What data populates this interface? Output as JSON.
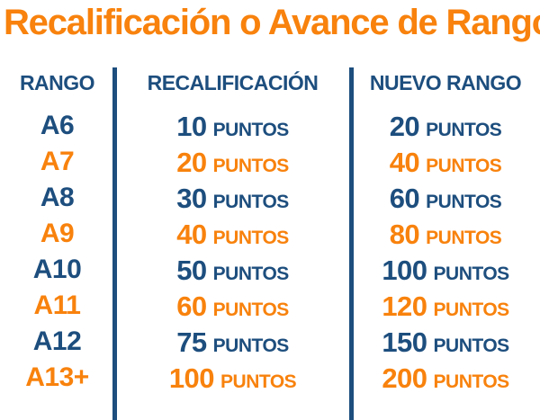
{
  "title": "Recalificación o Avance de Rango",
  "colors": {
    "orange": "#F8820D",
    "navy": "#1D4E7E",
    "background": "#FFFFFF"
  },
  "table": {
    "headers": {
      "rango": "RANGO",
      "recalificacion": "RECALIFICACIÓN",
      "nuevo_rango": "NUEVO RANGO"
    },
    "points_suffix": "PUNTOS",
    "rows": [
      {
        "rank": "A6",
        "recalificacion": "10",
        "nuevo_rango": "20",
        "color": "navy"
      },
      {
        "rank": "A7",
        "recalificacion": "20",
        "nuevo_rango": "40",
        "color": "orange"
      },
      {
        "rank": "A8",
        "recalificacion": "30",
        "nuevo_rango": "60",
        "color": "navy"
      },
      {
        "rank": "A9",
        "recalificacion": "40",
        "nuevo_rango": "80",
        "color": "orange"
      },
      {
        "rank": "A10",
        "recalificacion": "50",
        "nuevo_rango": "100",
        "color": "navy"
      },
      {
        "rank": "A11",
        "recalificacion": "60",
        "nuevo_rango": "120",
        "color": "orange"
      },
      {
        "rank": "A12",
        "recalificacion": "75",
        "nuevo_rango": "150",
        "color": "navy"
      },
      {
        "rank": "A13+",
        "recalificacion": "100",
        "nuevo_rango": "200",
        "color": "orange"
      }
    ]
  },
  "chart_data": {
    "type": "table",
    "title": "Recalificación o Avance de Rango",
    "columns": [
      "RANGO",
      "RECALIFICACIÓN",
      "NUEVO RANGO"
    ],
    "rows": [
      [
        "A6",
        "10 PUNTOS",
        "20 PUNTOS"
      ],
      [
        "A7",
        "20 PUNTOS",
        "40 PUNTOS"
      ],
      [
        "A8",
        "30 PUNTOS",
        "60 PUNTOS"
      ],
      [
        "A9",
        "40 PUNTOS",
        "80 PUNTOS"
      ],
      [
        "A10",
        "50 PUNTOS",
        "100 PUNTOS"
      ],
      [
        "A11",
        "60 PUNTOS",
        "120 PUNTOS"
      ],
      [
        "A12",
        "75 PUNTOS",
        "150 PUNTOS"
      ],
      [
        "A13+",
        "100 PUNTOS",
        "200 PUNTOS"
      ]
    ]
  }
}
